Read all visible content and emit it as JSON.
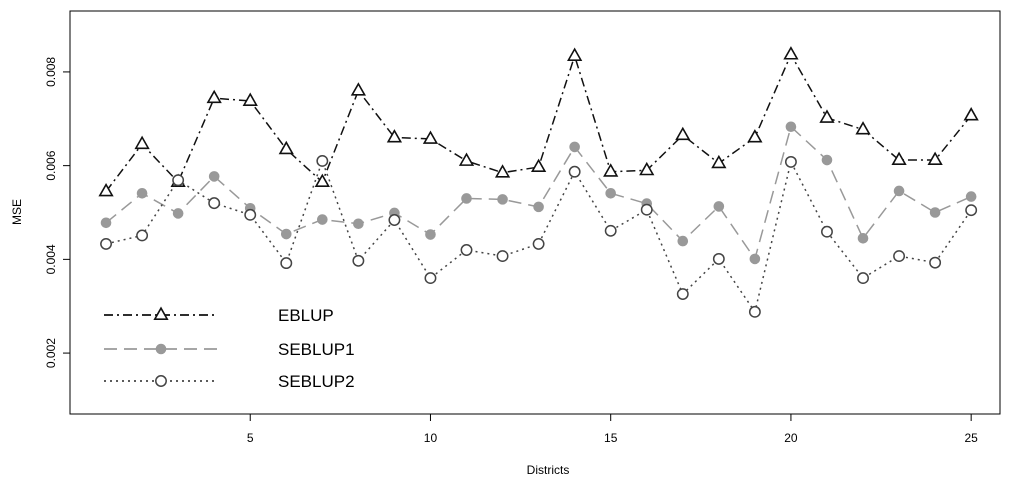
{
  "chart_data": {
    "type": "line",
    "xlabel": "Districts",
    "ylabel": "MSE",
    "xlim": [
      0,
      25.8
    ],
    "ylim": [
      0.0007,
      0.0093
    ],
    "x_ticks": [
      5,
      10,
      15,
      20,
      25
    ],
    "x_tick_labels": [
      "5",
      "10",
      "15",
      "20",
      "25"
    ],
    "y_ticks": [
      0.002,
      0.004,
      0.006,
      0.008
    ],
    "y_tick_labels": [
      "0.002",
      "0.004",
      "0.006",
      "0.008"
    ],
    "grid": false,
    "legend_position": "bottom-left",
    "x": [
      1,
      2,
      3,
      4,
      5,
      6,
      7,
      8,
      9,
      10,
      11,
      12,
      13,
      14,
      15,
      16,
      17,
      18,
      19,
      20,
      21,
      22,
      23,
      24,
      25
    ],
    "series": [
      {
        "name": "EBLUP",
        "marker": "triangle",
        "line_style": "dash-dot",
        "color": "#111111",
        "values": [
          0.00545,
          0.00646,
          0.00565,
          0.00744,
          0.00738,
          0.00635,
          0.00565,
          0.0076,
          0.0066,
          0.00657,
          0.0061,
          0.00585,
          0.00597,
          0.00834,
          0.00587,
          0.0059,
          0.00665,
          0.00605,
          0.0066,
          0.00837,
          0.00702,
          0.00677,
          0.00612,
          0.00612,
          0.00707
        ]
      },
      {
        "name": "SEBLUP1",
        "marker": "filled-circle",
        "line_style": "dashed",
        "color": "#999999",
        "values": [
          0.00478,
          0.00541,
          0.00498,
          0.00577,
          0.00509,
          0.00454,
          0.00485,
          0.00476,
          0.00499,
          0.00453,
          0.0053,
          0.00528,
          0.00512,
          0.0064,
          0.00541,
          0.00519,
          0.00439,
          0.00513,
          0.00401,
          0.00683,
          0.00612,
          0.00445,
          0.00546,
          0.005,
          0.00534
        ]
      },
      {
        "name": "SEBLUP2",
        "marker": "open-circle",
        "line_style": "dotted",
        "color": "#444444",
        "values": [
          0.00433,
          0.00451,
          0.00569,
          0.0052,
          0.00495,
          0.00392,
          0.0061,
          0.00397,
          0.00484,
          0.0036,
          0.0042,
          0.00407,
          0.00433,
          0.00587,
          0.00461,
          0.00506,
          0.00326,
          0.00401,
          0.00288,
          0.00608,
          0.00459,
          0.0036,
          0.00407,
          0.00393,
          0.00505
        ]
      }
    ]
  }
}
